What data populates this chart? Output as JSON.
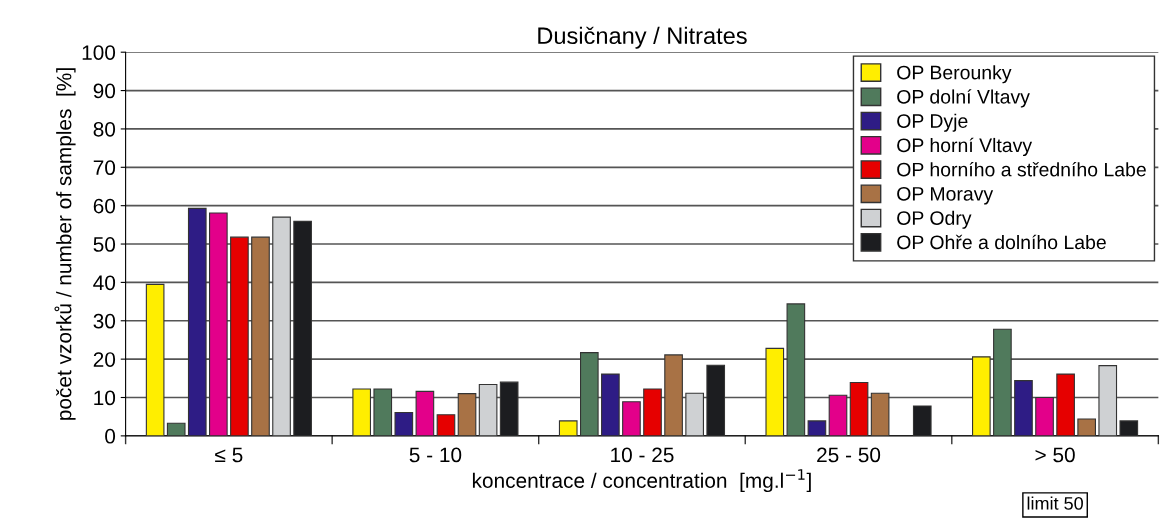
{
  "chart_data": {
    "type": "bar",
    "title": "Dusičnany / Nitrates",
    "xlabel": "koncentrace / concentration  [mg.l$^{−1}$]",
    "ylabel": "počet vzorků / number of samples  [%]",
    "categories": [
      "≤ 5",
      "5 - 10",
      "10 - 25",
      "25 - 50",
      "> 50"
    ],
    "series": [
      {
        "name": "OP Berounky",
        "color": "#ffee00",
        "values": [
          39.5,
          12.2,
          3.9,
          22.8,
          20.6
        ]
      },
      {
        "name": "OP dolní Vltavy",
        "color": "#507a5c",
        "values": [
          3.3,
          12.2,
          21.7,
          34.4,
          27.8
        ]
      },
      {
        "name": "OP Dyje",
        "color": "#2e1c85",
        "values": [
          59.3,
          6.1,
          16.1,
          3.9,
          14.4
        ]
      },
      {
        "name": "OP horní Vltavy",
        "color": "#e3008a",
        "values": [
          58.1,
          11.6,
          8.9,
          10.6,
          10.0
        ]
      },
      {
        "name": "OP horního a středního Labe",
        "color": "#e60000",
        "values": [
          51.8,
          5.5,
          12.2,
          13.9,
          16.1
        ]
      },
      {
        "name": "OP Moravy",
        "color": "#a87245",
        "values": [
          51.8,
          11.0,
          21.1,
          11.1,
          4.4
        ]
      },
      {
        "name": "OP Odry",
        "color": "#cfd1d3",
        "values": [
          57.0,
          13.4,
          11.1,
          null,
          18.3
        ]
      },
      {
        "name": "OP Ohře a dolního Labe",
        "color": "#1c1d20",
        "values": [
          55.9,
          14.0,
          18.4,
          7.8,
          3.9
        ]
      }
    ],
    "ylim": [
      0,
      100
    ],
    "yticks": [
      0,
      10,
      20,
      30,
      40,
      50,
      60,
      70,
      80,
      90,
      100
    ],
    "grid": "y",
    "legend": "top right",
    "annotations": [
      "limit 50"
    ]
  }
}
